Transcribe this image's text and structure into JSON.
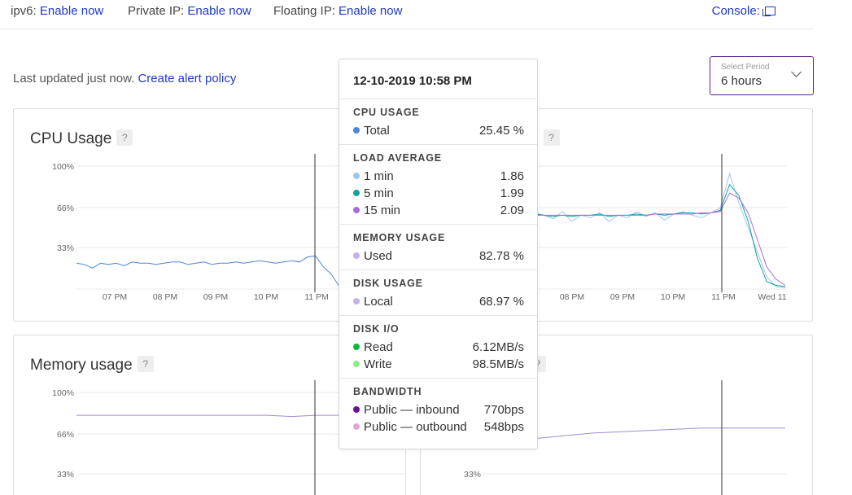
{
  "topbar": {
    "ipv6_label": "ipv6:",
    "ipv6_link": "Enable now",
    "private_ip_label": "Private IP:",
    "private_ip_link": "Enable now",
    "floating_ip_label": "Floating IP:",
    "floating_ip_link": "Enable now",
    "console_label": "Console:"
  },
  "status": {
    "last_updated": "Last updated just now.",
    "alert_link": "Create alert policy"
  },
  "period": {
    "label": "Select Period",
    "value": "6 hours"
  },
  "charts": {
    "cpu": {
      "title": "CPU Usage",
      "help": "?"
    },
    "load": {
      "title_fragment": "e",
      "help": "?"
    },
    "memory": {
      "title": "Memory usage",
      "help": "?"
    },
    "disk": {
      "help": "?"
    }
  },
  "chart_data": [
    {
      "type": "line",
      "title": "CPU Usage",
      "y_ticks": [
        "100%",
        "66%",
        "33%"
      ],
      "x_ticks": [
        "07 PM",
        "08 PM",
        "09 PM",
        "10 PM",
        "11 PM"
      ],
      "ylim": [
        0,
        100
      ],
      "series": [
        {
          "values": [
            21,
            20,
            17,
            21,
            20,
            21,
            19,
            22,
            21,
            21,
            20,
            21,
            22,
            22,
            20,
            21,
            22,
            20,
            21,
            21,
            22,
            21,
            22,
            23,
            22,
            21,
            22,
            23,
            22,
            26,
            27,
            18,
            12,
            2
          ]
        }
      ]
    },
    {
      "type": "line",
      "title": "",
      "x_ticks": [
        "08 PM",
        "09 PM",
        "10 PM",
        "11 PM",
        "Wed 11"
      ],
      "series": [
        {
          "values": [
            62,
            60,
            57,
            63,
            55,
            60,
            58,
            62,
            55,
            60,
            58,
            63,
            59,
            62,
            56,
            61,
            63,
            60,
            58,
            62,
            66,
            94,
            70,
            50,
            30,
            10,
            2,
            1
          ]
        },
        {
          "values": [
            61,
            60,
            59,
            60,
            59,
            60,
            60,
            61,
            59,
            60,
            60,
            61,
            60,
            61,
            60,
            61,
            62,
            62,
            61,
            62,
            64,
            85,
            76,
            55,
            25,
            6,
            3,
            2
          ]
        },
        {
          "values": [
            60,
            60,
            60,
            60,
            60,
            60,
            60,
            60,
            60,
            60,
            60,
            60,
            60,
            61,
            61,
            61,
            61,
            61,
            62,
            62,
            63,
            78,
            74,
            62,
            40,
            18,
            8,
            3
          ]
        }
      ]
    },
    {
      "type": "line",
      "title": "Memory usage",
      "y_ticks": [
        "100%",
        "66%",
        "33%"
      ],
      "series": [
        {
          "values": [
            82,
            82,
            82,
            82,
            82,
            82,
            82,
            82,
            82,
            81,
            82,
            82
          ]
        }
      ]
    },
    {
      "type": "line",
      "y_ticks": [
        "33%"
      ],
      "series": [
        {
          "values": [
            60,
            62,
            64,
            66,
            68,
            69,
            70,
            71,
            72,
            72,
            72,
            72
          ]
        }
      ]
    }
  ],
  "tooltip": {
    "timestamp": "12-10-2019 10:58 PM",
    "sections": [
      {
        "title": "CPU USAGE",
        "rows": [
          {
            "name": "Total",
            "value": "25.45 %",
            "color": "#4a86d9"
          }
        ]
      },
      {
        "title": "LOAD AVERAGE",
        "rows": [
          {
            "name": "1 min",
            "value": "1.86",
            "color": "#9ec6ec"
          },
          {
            "name": "5 min",
            "value": "1.99",
            "color": "#11a39c"
          },
          {
            "name": "15 min",
            "value": "2.09",
            "color": "#a46fd9"
          }
        ]
      },
      {
        "title": "MEMORY USAGE",
        "rows": [
          {
            "name": "Used",
            "value": "82.78 %",
            "color": "#c5b1ec"
          }
        ]
      },
      {
        "title": "DISK USAGE",
        "rows": [
          {
            "name": "Local",
            "value": "68.97 %",
            "color": "#c5b1ec"
          }
        ]
      },
      {
        "title": "DISK I/O",
        "rows": [
          {
            "name": "Read",
            "value": "6.12MB/s",
            "color": "#0cb83a"
          },
          {
            "name": "Write",
            "value": "98.5MB/s",
            "color": "#93e88a"
          }
        ]
      },
      {
        "title": "BANDWIDTH",
        "rows": [
          {
            "name": "Public — inbound",
            "value": "770bps",
            "color": "#700e93"
          },
          {
            "name": "Public — outbound",
            "value": "548bps",
            "color": "#dba8d6"
          }
        ]
      }
    ]
  }
}
